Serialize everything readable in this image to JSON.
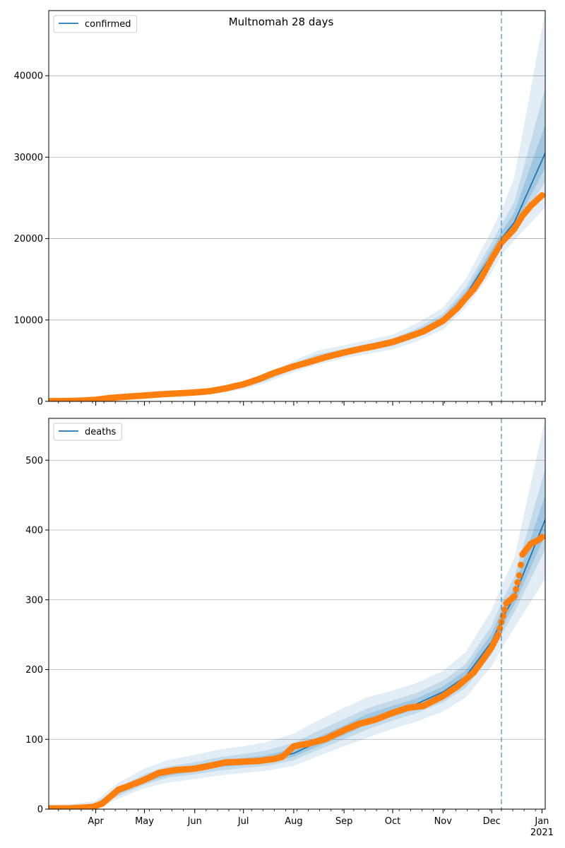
{
  "figure": {
    "title": "Multnomah 28 days"
  },
  "chart_data": [
    {
      "type": "line",
      "legend": "top-left",
      "grid": "y-major",
      "series_name": "confirmed",
      "x_tick_labels": [
        "Apr",
        "May",
        "Jun",
        "Jul",
        "Aug",
        "Sep",
        "Oct",
        "Nov",
        "Dec",
        "Jan"
      ],
      "x_tick_values": [
        "2020-04-01",
        "2020-05-01",
        "2020-06-01",
        "2020-07-01",
        "2020-08-01",
        "2020-09-01",
        "2020-10-01",
        "2020-11-01",
        "2020-12-01",
        "2021-01-01"
      ],
      "x_sub_label": "2021",
      "xlim": [
        "2020-03-03",
        "2021-01-03"
      ],
      "ylim": [
        0,
        48000
      ],
      "y_ticks": [
        0,
        10000,
        20000,
        30000,
        40000
      ],
      "y_tick_labels": [
        "0",
        "10000",
        "20000",
        "30000",
        "40000"
      ],
      "forecast_start": "2020-12-07",
      "model_dates": [
        "2020-03-03",
        "2020-03-20",
        "2020-04-01",
        "2020-04-15",
        "2020-05-01",
        "2020-05-15",
        "2020-06-01",
        "2020-06-15",
        "2020-07-01",
        "2020-07-15",
        "2020-08-01",
        "2020-08-15",
        "2020-09-01",
        "2020-09-15",
        "2020-10-01",
        "2020-10-15",
        "2020-11-01",
        "2020-11-15",
        "2020-12-01",
        "2020-12-07",
        "2020-12-15",
        "2021-01-03"
      ],
      "model_median": [
        50,
        60,
        150,
        350,
        650,
        850,
        1050,
        1300,
        1900,
        2800,
        4300,
        5300,
        6000,
        6600,
        7200,
        8300,
        10000,
        13000,
        18000,
        20000,
        22000,
        30500
      ],
      "band_outer_low": [
        0,
        0,
        80,
        250,
        500,
        650,
        800,
        1000,
        1500,
        2300,
        3600,
        4500,
        5300,
        5800,
        6400,
        7300,
        8800,
        11500,
        15800,
        18000,
        19800,
        23800
      ],
      "band_outer_high": [
        150,
        160,
        300,
        550,
        850,
        1100,
        1350,
        1650,
        2400,
        3300,
        5000,
        6200,
        6900,
        7500,
        8200,
        9500,
        11500,
        15000,
        21000,
        23500,
        27500,
        48000
      ],
      "band_mid_low": [
        20,
        30,
        110,
        290,
        570,
        740,
        920,
        1140,
        1700,
        2550,
        3950,
        4900,
        5650,
        6200,
        6800,
        7800,
        9400,
        12250,
        16900,
        19000,
        20900,
        27000
      ],
      "band_mid_high": [
        90,
        100,
        220,
        430,
        750,
        970,
        1200,
        1480,
        2150,
        3050,
        4650,
        5750,
        6450,
        7050,
        7700,
        8900,
        10750,
        14000,
        19500,
        21700,
        24500,
        38500
      ],
      "band_inner_low": [
        35,
        45,
        130,
        320,
        610,
        795,
        985,
        1220,
        1800,
        2670,
        4120,
        5100,
        5820,
        6400,
        7000,
        8050,
        9700,
        12600,
        17450,
        19500,
        21450,
        28700
      ],
      "band_inner_high": [
        70,
        80,
        185,
        390,
        700,
        910,
        1125,
        1390,
        2025,
        2930,
        4480,
        5520,
        6220,
        6820,
        7450,
        8600,
        10380,
        13500,
        18700,
        20800,
        23200,
        34000
      ],
      "obs_dates": [
        "2020-03-03",
        "2020-03-10",
        "2020-03-17",
        "2020-03-24",
        "2020-04-01",
        "2020-04-10",
        "2020-04-20",
        "2020-05-01",
        "2020-05-10",
        "2020-05-20",
        "2020-06-01",
        "2020-06-10",
        "2020-06-20",
        "2020-07-01",
        "2020-07-10",
        "2020-07-20",
        "2020-08-01",
        "2020-08-10",
        "2020-08-20",
        "2020-09-01",
        "2020-09-10",
        "2020-09-20",
        "2020-10-01",
        "2020-10-10",
        "2020-10-20",
        "2020-11-01",
        "2020-11-10",
        "2020-11-15",
        "2020-11-20",
        "2020-11-25",
        "2020-12-01",
        "2020-12-07",
        "2020-12-15",
        "2020-12-20",
        "2020-12-25",
        "2021-01-01"
      ],
      "obs_values": [
        30,
        40,
        60,
        100,
        200,
        420,
        580,
        720,
        860,
        970,
        1100,
        1250,
        1600,
        2100,
        2700,
        3500,
        4300,
        4800,
        5400,
        6000,
        6400,
        6800,
        7300,
        7900,
        8600,
        9900,
        11500,
        12700,
        13800,
        15300,
        17500,
        19500,
        21200,
        22800,
        24000,
        25300
      ]
    },
    {
      "type": "line",
      "legend": "top-left",
      "grid": "y-major",
      "series_name": "deaths",
      "x_tick_labels": [
        "Apr",
        "May",
        "Jun",
        "Jul",
        "Aug",
        "Sep",
        "Oct",
        "Nov",
        "Dec",
        "Jan"
      ],
      "x_tick_values": [
        "2020-04-01",
        "2020-05-01",
        "2020-06-01",
        "2020-07-01",
        "2020-08-01",
        "2020-09-01",
        "2020-10-01",
        "2020-11-01",
        "2020-12-01",
        "2021-01-01"
      ],
      "x_sub_label": "2021",
      "xlim": [
        "2020-03-03",
        "2021-01-03"
      ],
      "ylim": [
        0,
        560
      ],
      "y_ticks": [
        0,
        100,
        200,
        300,
        400,
        500
      ],
      "y_tick_labels": [
        "0",
        "100",
        "200",
        "300",
        "400",
        "500"
      ],
      "forecast_start": "2020-12-07",
      "model_dates": [
        "2020-03-03",
        "2020-03-20",
        "2020-04-01",
        "2020-04-15",
        "2020-05-01",
        "2020-05-15",
        "2020-06-01",
        "2020-06-15",
        "2020-07-01",
        "2020-07-15",
        "2020-08-01",
        "2020-08-15",
        "2020-09-01",
        "2020-09-15",
        "2020-10-01",
        "2020-10-15",
        "2020-11-01",
        "2020-11-15",
        "2020-12-01",
        "2020-12-07",
        "2020-12-15",
        "2021-01-03"
      ],
      "model_median": [
        1,
        2,
        5,
        25,
        42,
        52,
        58,
        64,
        68,
        71,
        80,
        95,
        112,
        128,
        140,
        150,
        168,
        190,
        240,
        270,
        305,
        415
      ],
      "band_outer_low": [
        0,
        0,
        2,
        15,
        30,
        38,
        43,
        48,
        52,
        55,
        62,
        75,
        90,
        102,
        115,
        125,
        140,
        160,
        205,
        230,
        260,
        330
      ],
      "band_outer_high": [
        6,
        8,
        12,
        38,
        58,
        70,
        78,
        85,
        90,
        96,
        108,
        126,
        145,
        160,
        170,
        180,
        198,
        225,
        285,
        320,
        360,
        560
      ],
      "band_mid_low": [
        0,
        1,
        3,
        19,
        35,
        45,
        50,
        55,
        59,
        62,
        70,
        84,
        100,
        114,
        127,
        137,
        153,
        174,
        222,
        250,
        282,
        372
      ],
      "band_mid_high": [
        3,
        5,
        9,
        31,
        50,
        61,
        67,
        74,
        79,
        84,
        95,
        111,
        129,
        144,
        156,
        166,
        184,
        208,
        263,
        296,
        333,
        488
      ],
      "band_inner_low": [
        0,
        1,
        4,
        22,
        38,
        48,
        54,
        60,
        63,
        67,
        75,
        89,
        106,
        121,
        133,
        143,
        160,
        182,
        231,
        260,
        293,
        393
      ],
      "band_inner_high": [
        2,
        3,
        7,
        28,
        46,
        57,
        63,
        69,
        73,
        77,
        87,
        102,
        120,
        136,
        148,
        158,
        176,
        199,
        252,
        283,
        318,
        450
      ],
      "obs_dates": [
        "2020-03-03",
        "2020-03-15",
        "2020-03-30",
        "2020-04-05",
        "2020-04-10",
        "2020-04-15",
        "2020-04-20",
        "2020-05-01",
        "2020-05-10",
        "2020-05-20",
        "2020-06-01",
        "2020-06-10",
        "2020-06-20",
        "2020-07-01",
        "2020-07-10",
        "2020-07-20",
        "2020-07-25",
        "2020-08-01",
        "2020-08-10",
        "2020-08-20",
        "2020-09-01",
        "2020-09-10",
        "2020-09-20",
        "2020-10-01",
        "2020-10-10",
        "2020-10-20",
        "2020-11-01",
        "2020-11-10",
        "2020-11-20",
        "2020-11-25",
        "2020-12-01",
        "2020-12-05",
        "2020-12-10",
        "2020-12-15",
        "2020-12-18",
        "2020-12-20",
        "2020-12-25",
        "2020-12-30",
        "2021-01-01"
      ],
      "obs_values": [
        1,
        1,
        3,
        8,
        18,
        28,
        32,
        42,
        52,
        56,
        58,
        62,
        67,
        68,
        69,
        72,
        75,
        90,
        94,
        100,
        113,
        122,
        128,
        138,
        145,
        148,
        162,
        176,
        196,
        212,
        232,
        250,
        295,
        305,
        335,
        365,
        380,
        386,
        390
      ]
    }
  ]
}
